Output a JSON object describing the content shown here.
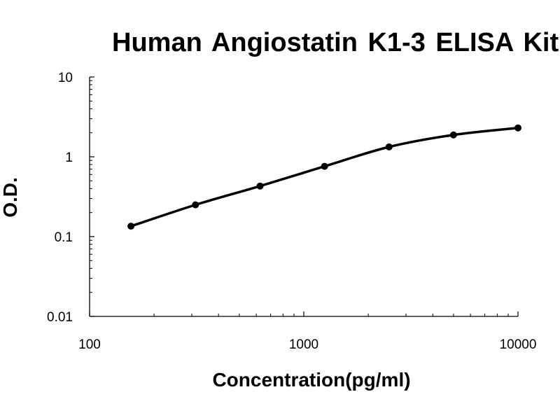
{
  "chart_data": {
    "type": "line",
    "title": "Human Angiostatin  K1-3 ELISA Kit",
    "xlabel": "Concentration(pg/ml)",
    "ylabel": "O.D.",
    "x_scale": "log",
    "y_scale": "log",
    "xlim": [
      100,
      10000
    ],
    "ylim": [
      0.01,
      10
    ],
    "x_ticks": [
      "100",
      "1000",
      "10000"
    ],
    "y_ticks": [
      "0.01",
      "0.1",
      "1",
      "10"
    ],
    "grid": false,
    "legend": "none",
    "series": [
      {
        "x": [
          156,
          312,
          625,
          1250,
          2500,
          5000,
          10000
        ],
        "y": [
          0.135,
          0.25,
          0.43,
          0.76,
          1.33,
          1.88,
          2.3
        ]
      }
    ],
    "colors": {
      "line": "#000000",
      "marker": "#000000",
      "axis": "#000000"
    }
  }
}
